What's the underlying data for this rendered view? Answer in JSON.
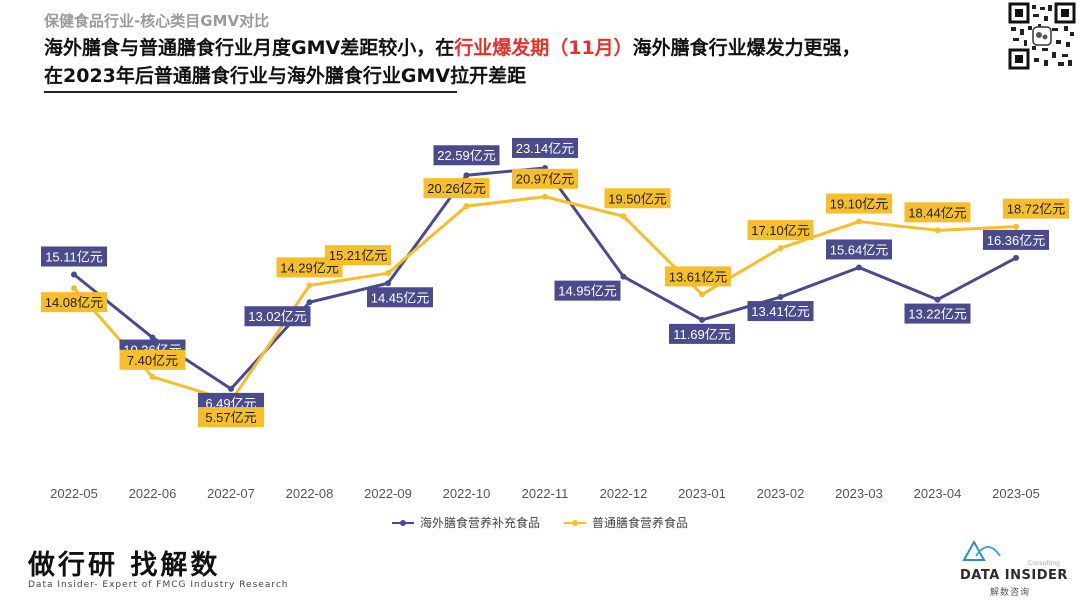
{
  "header": {
    "subtitle": "保健食品行业-核心类目GMV对比",
    "line1_part1": "海外膳食与普通膳食行业月度GMV差距较小，在",
    "line1_highlight": "行业爆发期（11月）",
    "line1_part2": "海外膳食行业爆发力更强，",
    "line2": "在2023年后普通膳食行业与海外膳食行业GMV拉开差距"
  },
  "chart_data": {
    "type": "line",
    "categories": [
      "2022-05",
      "2022-06",
      "2022-07",
      "2022-08",
      "2022-09",
      "2022-10",
      "2022-11",
      "2022-12",
      "2023-01",
      "2023-02",
      "2023-03",
      "2023-04",
      "2023-05"
    ],
    "series": [
      {
        "name": "海外膳食营养补充食品",
        "color": "#4a4b8c",
        "values": [
          15.11,
          10.36,
          6.49,
          13.02,
          14.45,
          22.59,
          23.14,
          14.95,
          11.69,
          13.41,
          15.64,
          13.22,
          16.36
        ],
        "labels": [
          "15.11亿元",
          "10.36亿元",
          "6.49亿元",
          "13.02亿元",
          "14.45亿元",
          "22.59亿元",
          "23.14亿元",
          "14.95亿元",
          "11.69亿元",
          "13.41亿元",
          "15.64亿元",
          "13.22亿元",
          "16.36亿元"
        ]
      },
      {
        "name": "普通膳食营养食品",
        "color": "#f7be2b",
        "values": [
          14.08,
          7.4,
          5.57,
          14.29,
          15.21,
          20.26,
          20.97,
          19.5,
          13.61,
          17.1,
          19.1,
          18.44,
          18.72
        ],
        "labels": [
          "14.08亿元",
          "7.40亿元",
          "5.57亿元",
          "14.29亿元",
          "15.21亿元",
          "20.26亿元",
          "20.97亿元",
          "19.50亿元",
          "13.61亿元",
          "17.10亿元",
          "19.10亿元",
          "18.44亿元",
          "18.72亿元"
        ]
      }
    ],
    "title": "",
    "xlabel": "",
    "ylabel": "",
    "ylim": [
      0,
      26
    ],
    "grid": false,
    "legend_position": "bottom-center"
  },
  "footer": {
    "brand": "做行研 找解数",
    "brand_sub": "Data Insider- Expert of FMCG Industry Research",
    "logo_name": "DATA INSIDER",
    "logo_cn": "解数咨询",
    "logo_small": "Consulting"
  }
}
